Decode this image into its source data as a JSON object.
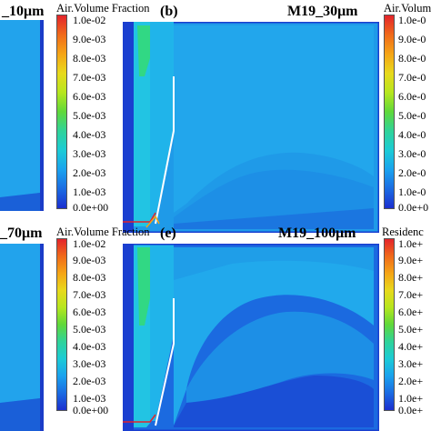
{
  "panels": {
    "a": {
      "title_partial": "_10μm"
    },
    "b": {
      "letter": "(b)",
      "title": "M19_30μm"
    },
    "d": {
      "title_partial": "_70μm"
    },
    "e": {
      "letter": "(e)",
      "title": "M19_100μm"
    }
  },
  "legends": {
    "air1": {
      "title": "Air.Volume Fraction",
      "ticks": [
        "1.0e-02",
        "9.0e-03",
        "8.0e-03",
        "7.0e-03",
        "6.0e-03",
        "5.0e-03",
        "4.0e-03",
        "3.0e-03",
        "2.0e-03",
        "1.0e-03",
        "0.0e+00"
      ]
    },
    "air2": {
      "title": "Air.Volume Fraction",
      "ticks": [
        "1.0e-02",
        "9.0e-03",
        "8.0e-03",
        "7.0e-03",
        "6.0e-03",
        "5.0e-03",
        "4.0e-03",
        "3.0e-03",
        "2.0e-03",
        "1.0e-03",
        "0.0e+00"
      ]
    },
    "air3_partial": {
      "title": "Air.Volume",
      "ticks": [
        "1.0e-0",
        "9.0e-0",
        "8.0e-0",
        "7.0e-0",
        "6.0e-0",
        "5.0e-0",
        "4.0e-0",
        "3.0e-0",
        "2.0e-0",
        "1.0e-0",
        "0.0e+0"
      ]
    },
    "res_partial": {
      "title": "Residenc",
      "ticks": [
        "1.0e+",
        "9.0e+",
        "8.0e+",
        "7.0e+",
        "6.0e+",
        "5.0e+",
        "4.0e+",
        "3.0e+",
        "2.0e+",
        "1.0e+",
        "0.0e+"
      ]
    }
  },
  "colors": {
    "field_bg": "#1f9ee8",
    "dark_blue": "#1a4fd6",
    "cyan": "#22c6e4",
    "green": "#30d87a"
  }
}
